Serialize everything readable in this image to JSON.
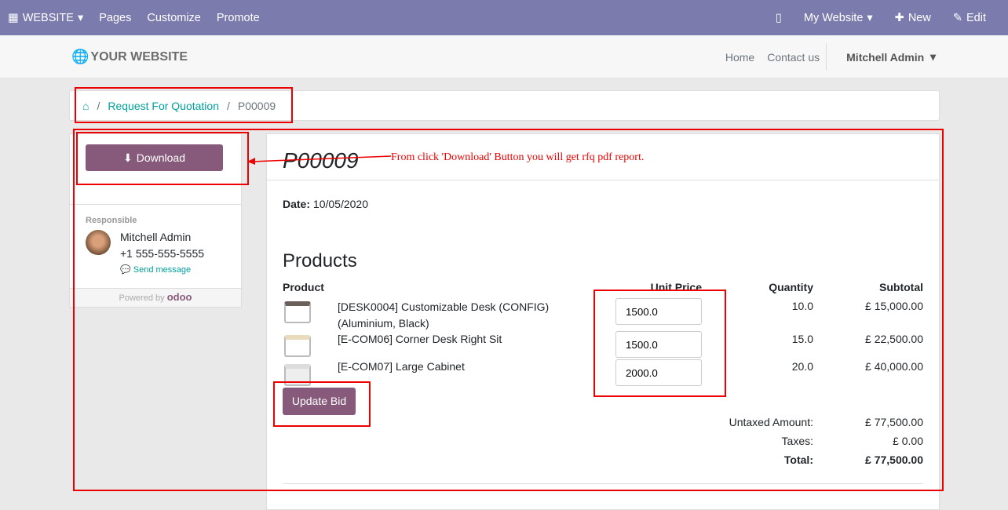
{
  "topbar": {
    "website": "WEBSITE",
    "pages": "Pages",
    "customize": "Customize",
    "promote": "Promote",
    "my_website": "My Website",
    "new": "New",
    "edit": "Edit"
  },
  "header": {
    "logo": "YOUR WEBSITE",
    "home": "Home",
    "contact": "Contact us",
    "user": "Mitchell Admin"
  },
  "breadcrumb": {
    "rfq": "Request For Quotation",
    "current": "P00009"
  },
  "sidebar": {
    "download": "Download",
    "responsible_label": "Responsible",
    "name": "Mitchell Admin",
    "phone": "+1 555-555-5555",
    "send_message": "Send message",
    "powered_by": "Powered by",
    "odoo": "odoo"
  },
  "doc": {
    "title": "P00009",
    "date_label": "Date:",
    "date": "10/05/2020",
    "products_heading": "Products",
    "headers": {
      "product": "Product",
      "unit_price": "Unit Price",
      "quantity": "Quantity",
      "subtotal": "Subtotal"
    },
    "lines": [
      {
        "name": "[DESK0004] Customizable Desk (CONFIG) (Aluminium, Black)",
        "price": "1500.0",
        "qty": "10.0",
        "subtotal": "£ 15,000.00"
      },
      {
        "name": "[E-COM06] Corner Desk Right Sit",
        "price": "1500.0",
        "qty": "15.0",
        "subtotal": "£ 22,500.00"
      },
      {
        "name": "[E-COM07] Large Cabinet",
        "price": "2000.0",
        "qty": "20.0",
        "subtotal": "£ 40,000.00"
      }
    ],
    "update_bid": "Update Bid",
    "untaxed_label": "Untaxed Amount:",
    "untaxed": "£ 77,500.00",
    "taxes_label": "Taxes:",
    "taxes": "£ 0.00",
    "total_label": "Total:",
    "total": "£ 77,500.00"
  },
  "annotation": "From click 'Download' Button you will get rfq pdf report."
}
